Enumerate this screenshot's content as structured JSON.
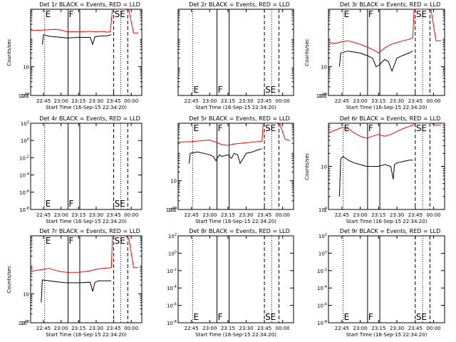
{
  "colors": {
    "background": "#ffffff",
    "axes": "#000000",
    "events": "#000000",
    "lld": "#ff0000"
  },
  "chart_data": [
    {
      "type": "line",
      "title": "Det 1r BLACK = Events, RED = LLD",
      "xlabel": "Start Time (16-Sep-15 22:34:20)",
      "ylabel": "Counts/sec",
      "xticks": [
        "22:45",
        "23:00",
        "23:15",
        "23:30",
        "23:45",
        "00:00"
      ],
      "yticks": [
        "1",
        "10",
        "100",
        "1000"
      ],
      "ylim": [
        1,
        1000
      ],
      "markers": [
        {
          "label": "E",
          "style": "dotted"
        },
        {
          "label": "F",
          "style": "solid"
        },
        {
          "label": "",
          "style": "solid"
        },
        {
          "label": "SE",
          "style": "dashed"
        },
        {
          "label": "",
          "style": "dotted"
        },
        {
          "label": "",
          "style": "dashed"
        }
      ],
      "series": [
        {
          "color": "#ff0000",
          "x": [
            "22:34",
            "22:45",
            "22:55",
            "23:00",
            "23:05",
            "23:15",
            "23:25",
            "23:30",
            "23:35",
            "23:40",
            "23:42",
            "23:44",
            "23:50",
            "23:55",
            "23:58",
            "00:02",
            "00:06"
          ],
          "y": [
            180,
            190,
            200,
            190,
            165,
            165,
            170,
            165,
            170,
            160,
            165,
            1000,
            1000,
            1000,
            900,
            150,
            150
          ]
        },
        {
          "color": "#000000",
          "x": [
            "22:44",
            "22:45",
            "22:50",
            "23:00",
            "23:05",
            "23:15",
            "23:25",
            "23:27",
            "23:29",
            "23:32",
            "23:40",
            "23:43"
          ],
          "y": [
            60,
            130,
            115,
            105,
            100,
            105,
            105,
            60,
            110,
            115,
            120,
            130
          ]
        }
      ]
    },
    {
      "type": "line",
      "title": "Det 2r BLACK = Events, RED = LLD",
      "xlabel": "Start Time (16-Sep-15 22:34:20)",
      "ylabel": "",
      "xticks": [
        "22:45",
        "23:00",
        "23:15",
        "23:30",
        "23:45",
        "00:00"
      ],
      "yticks": [],
      "ylim": [
        1,
        1000
      ],
      "markers": [
        {
          "label": "E",
          "style": "dotted"
        },
        {
          "label": "F",
          "style": "solid"
        },
        {
          "label": "",
          "style": "solid"
        },
        {
          "label": "SE",
          "style": "dashed"
        },
        {
          "label": "",
          "style": "dotted"
        },
        {
          "label": "",
          "style": "dashed"
        }
      ],
      "series": []
    },
    {
      "type": "line",
      "title": "Det 3r BLACK = Events, RED = LLD",
      "xlabel": "Start Time (16-Sep-15 22:34:20)",
      "ylabel": "Counts/sec",
      "xticks": [
        "22:45",
        "23:00",
        "23:15",
        "23:30",
        "23:45",
        "00:00"
      ],
      "yticks": [
        "1",
        "10",
        "100",
        "1000"
      ],
      "ylim": [
        1,
        1000
      ],
      "markers": [
        {
          "label": "E",
          "style": "dotted"
        },
        {
          "label": "F",
          "style": "solid"
        },
        {
          "label": "",
          "style": "solid"
        },
        {
          "label": "SE",
          "style": "dashed"
        },
        {
          "label": "",
          "style": "dotted"
        },
        {
          "label": "",
          "style": "dashed"
        }
      ],
      "series": [
        {
          "color": "#ff0000",
          "x": [
            "22:34",
            "22:40",
            "22:45",
            "22:50",
            "22:55",
            "23:00",
            "23:05",
            "23:10",
            "23:15",
            "23:20",
            "23:25",
            "23:30",
            "23:35",
            "23:40",
            "23:43",
            "23:44",
            "23:50",
            "23:55",
            "23:58",
            "00:02",
            "00:06"
          ],
          "y": [
            70,
            65,
            75,
            80,
            70,
            60,
            50,
            40,
            30,
            45,
            60,
            70,
            80,
            90,
            100,
            1000,
            1000,
            1000,
            900,
            80,
            80
          ]
        },
        {
          "color": "#000000",
          "x": [
            "22:43",
            "22:44",
            "22:50",
            "23:00",
            "23:05",
            "23:10",
            "23:13",
            "23:16",
            "23:20",
            "23:23",
            "23:26",
            "23:30",
            "23:35",
            "23:40",
            "23:43"
          ],
          "y": [
            10,
            30,
            35,
            30,
            25,
            20,
            10,
            12,
            18,
            15,
            7,
            20,
            25,
            30,
            35
          ]
        }
      ]
    },
    {
      "type": "line",
      "title": "Det 4r BLACK = Events, RED = LLD",
      "xlabel": "Start Time (16-Sep-15 22:34:20)",
      "ylabel": "",
      "xticks": [
        "22:45",
        "23:00",
        "23:15",
        "23:30",
        "23:45",
        "00:00"
      ],
      "yticks": [
        "10-8",
        "10-6",
        "10-4",
        "10-2",
        "100",
        "102"
      ],
      "ylim": [
        "10-8",
        "102"
      ],
      "markers": [
        {
          "label": "E",
          "style": "dotted"
        },
        {
          "label": "F",
          "style": "solid"
        },
        {
          "label": "",
          "style": "solid"
        },
        {
          "label": "SE",
          "style": "dashed"
        },
        {
          "label": "",
          "style": "dotted"
        },
        {
          "label": "",
          "style": "dashed"
        }
      ],
      "series": []
    },
    {
      "type": "line",
      "title": "Det 5r BLACK = Events, RED = LLD",
      "xlabel": "Start Time (16-Sep-15 22:34:20)",
      "ylabel": "",
      "xticks": [
        "22:45",
        "23:00",
        "23:15",
        "23:30",
        "23:45",
        "00:00"
      ],
      "yticks": [
        "1",
        "10",
        "100",
        "1000"
      ],
      "ylim": [
        1,
        1000
      ],
      "markers": [
        {
          "label": "E",
          "style": "dotted"
        },
        {
          "label": "F",
          "style": "solid"
        },
        {
          "label": "",
          "style": "solid"
        },
        {
          "label": "SE",
          "style": "dashed"
        },
        {
          "label": "",
          "style": "dotted"
        },
        {
          "label": "",
          "style": "dashed"
        }
      ],
      "series": [
        {
          "color": "#ff0000",
          "x": [
            "22:34",
            "22:45",
            "22:50",
            "23:00",
            "23:05",
            "23:10",
            "23:15",
            "23:20",
            "23:25",
            "23:30",
            "23:35",
            "23:40",
            "23:43",
            "23:44",
            "23:50",
            "23:55",
            "23:58",
            "00:02",
            "00:06"
          ],
          "y": [
            220,
            230,
            240,
            260,
            220,
            180,
            170,
            190,
            200,
            210,
            220,
            230,
            240,
            1000,
            1000,
            1000,
            900,
            280,
            250
          ]
        },
        {
          "color": "#000000",
          "x": [
            "22:43",
            "22:44",
            "22:50",
            "23:00",
            "23:03",
            "23:05",
            "23:08",
            "23:10",
            "23:15",
            "23:18",
            "23:20",
            "23:23",
            "23:25",
            "23:30",
            "23:35",
            "23:40",
            "23:43"
          ],
          "y": [
            40,
            90,
            100,
            80,
            70,
            50,
            80,
            70,
            80,
            60,
            90,
            80,
            40,
            90,
            100,
            120,
            130
          ]
        }
      ]
    },
    {
      "type": "line",
      "title": "Det 6r BLACK = Events, RED = LLD",
      "xlabel": "Start Time (16-Sep-15 22:34:20)",
      "ylabel": "Counts/sec",
      "xticks": [
        "22:45",
        "23:00",
        "23:15",
        "23:30",
        "23:45",
        "00:00"
      ],
      "yticks": [
        "1",
        "10",
        "100"
      ],
      "ylim": [
        1,
        100
      ],
      "markers": [
        {
          "label": "E",
          "style": "dotted"
        },
        {
          "label": "F",
          "style": "solid"
        },
        {
          "label": "",
          "style": "solid"
        },
        {
          "label": "SE",
          "style": "dashed"
        },
        {
          "label": "",
          "style": "dotted"
        },
        {
          "label": "",
          "style": "dashed"
        }
      ],
      "series": [
        {
          "color": "#ff0000",
          "x": [
            "22:34",
            "22:40",
            "22:45",
            "22:50",
            "22:55",
            "23:00",
            "23:05",
            "23:10",
            "23:15",
            "23:20",
            "23:25",
            "23:30",
            "23:35",
            "23:40",
            "23:43",
            "23:44",
            "23:50",
            "23:55",
            "23:58",
            "00:02",
            "00:06"
          ],
          "y": [
            60,
            70,
            80,
            75,
            60,
            50,
            45,
            50,
            55,
            50,
            55,
            65,
            75,
            85,
            90,
            100,
            100,
            100,
            100,
            90,
            90
          ]
        },
        {
          "color": "#000000",
          "x": [
            "22:43",
            "22:44",
            "22:46",
            "22:50",
            "22:55",
            "23:00",
            "23:05",
            "23:10",
            "23:15",
            "23:20",
            "23:25",
            "23:27",
            "23:28",
            "23:30",
            "23:35",
            "23:40",
            "23:43"
          ],
          "y": [
            2,
            15,
            17,
            14,
            12,
            11,
            10,
            10,
            10,
            11,
            10,
            5,
            11,
            12,
            13,
            14,
            14
          ]
        }
      ]
    },
    {
      "type": "line",
      "title": "Det 7r BLACK = Events, RED = LLD",
      "xlabel": "Start Time (16-Sep-15 22:34:20)",
      "ylabel": "Counts/sec",
      "xticks": [
        "22:45",
        "23:00",
        "23:15",
        "23:30",
        "23:45",
        "00:00"
      ],
      "yticks": [
        "10",
        "100",
        "1000"
      ],
      "ylim": [
        1,
        1000
      ],
      "markers": [
        {
          "label": "E",
          "style": "dotted"
        },
        {
          "label": "F",
          "style": "solid"
        },
        {
          "label": "",
          "style": "solid"
        },
        {
          "label": "SE",
          "style": "dashed"
        },
        {
          "label": "",
          "style": "dotted"
        },
        {
          "label": "",
          "style": "dashed"
        }
      ],
      "series": [
        {
          "color": "#ff0000",
          "x": [
            "22:34",
            "22:40",
            "22:45",
            "22:50",
            "22:55",
            "23:00",
            "23:05",
            "23:15",
            "23:25",
            "23:30",
            "23:35",
            "23:40",
            "23:43",
            "23:44",
            "23:50",
            "23:55",
            "23:58",
            "00:02",
            "00:06"
          ],
          "y": [
            60,
            65,
            70,
            75,
            65,
            58,
            55,
            55,
            62,
            70,
            75,
            78,
            80,
            1000,
            1000,
            1000,
            800,
            80,
            80
          ]
        },
        {
          "color": "#000000",
          "x": [
            "22:43",
            "22:44",
            "22:50",
            "23:00",
            "23:05",
            "23:15",
            "23:25",
            "23:27",
            "23:29",
            "23:32",
            "23:40",
            "23:43"
          ],
          "y": [
            5,
            30,
            28,
            25,
            24,
            24,
            25,
            12,
            25,
            28,
            28,
            28
          ]
        }
      ]
    },
    {
      "type": "line",
      "title": "Det 8r BLACK = Events, RED = LLD",
      "xlabel": "Start Time (16-Sep-15 22:34:20)",
      "ylabel": "",
      "xticks": [
        "22:45",
        "23:00",
        "23:15",
        "23:30",
        "23:45",
        "00:00"
      ],
      "yticks": [
        "10-8",
        "10-6",
        "10-4",
        "10-2",
        "100",
        "102"
      ],
      "ylim": [
        "10-8",
        "102"
      ],
      "markers": [
        {
          "label": "E",
          "style": "dotted"
        },
        {
          "label": "F",
          "style": "solid"
        },
        {
          "label": "",
          "style": "solid"
        },
        {
          "label": "SE",
          "style": "dashed"
        },
        {
          "label": "",
          "style": "dotted"
        },
        {
          "label": "",
          "style": "dashed"
        }
      ],
      "series": []
    },
    {
      "type": "line",
      "title": "Det 9r BLACK = Events, RED = LLD",
      "xlabel": "Start Time (16-Sep-15 22:34:20)",
      "ylabel": "",
      "xticks": [
        "22:45",
        "23:00",
        "23:15",
        "23:30",
        "23:45",
        "00:00"
      ],
      "yticks": [
        "10-8",
        "10-6",
        "10-4",
        "10-2",
        "100",
        "102"
      ],
      "ylim": [
        "10-8",
        "102"
      ],
      "markers": [
        {
          "label": "E",
          "style": "dotted"
        },
        {
          "label": "F",
          "style": "solid"
        },
        {
          "label": "",
          "style": "solid"
        },
        {
          "label": "SE",
          "style": "dashed"
        },
        {
          "label": "",
          "style": "dotted"
        },
        {
          "label": "",
          "style": "dashed"
        }
      ],
      "series": []
    }
  ]
}
